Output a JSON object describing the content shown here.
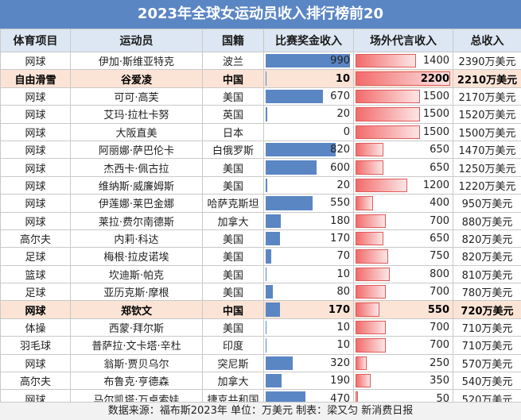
{
  "title": "2023年全球女运动员收入排行榜前20",
  "source": "数据来源：福布斯2023年 单位：万美元   制表：梁又匀 新消费日报",
  "colors": {
    "header_bg": "#5b86c4",
    "highlight_row": "#fbe4d6",
    "prize_bar": "#5b86c4",
    "endorse_bar": "#f26b6b"
  },
  "chart_data": {
    "type": "table",
    "title": "2023年全球女运动员收入排行榜前20",
    "columns": [
      "体育项目",
      "运动员",
      "国籍",
      "比赛奖金收入",
      "场外代言收入",
      "总收入"
    ],
    "rows": [
      {
        "sport": "网球",
        "name": "伊加·斯维亚特克",
        "country": "波兰",
        "prize": 990,
        "endorse": 1400,
        "total": "2390万美元",
        "hl": false
      },
      {
        "sport": "自由滑雪",
        "name": "谷爱凌",
        "country": "中国",
        "prize": 10,
        "endorse": 2200,
        "total": "2210万美元",
        "hl": true
      },
      {
        "sport": "网球",
        "name": "可可·高芙",
        "country": "美国",
        "prize": 670,
        "endorse": 1500,
        "total": "2170万美元",
        "hl": false
      },
      {
        "sport": "网球",
        "name": "艾玛·拉杜卡努",
        "country": "英国",
        "prize": 20,
        "endorse": 1500,
        "total": "1520万美元",
        "hl": false
      },
      {
        "sport": "网球",
        "name": "大阪直美",
        "country": "日本",
        "prize": 0,
        "endorse": 1500,
        "total": "1500万美元",
        "hl": false
      },
      {
        "sport": "网球",
        "name": "阿丽娜·萨巴伦卡",
        "country": "白俄罗斯",
        "prize": 820,
        "endorse": 650,
        "total": "1470万美元",
        "hl": false
      },
      {
        "sport": "网球",
        "name": "杰西卡·佩古拉",
        "country": "美国",
        "prize": 600,
        "endorse": 650,
        "total": "1250万美元",
        "hl": false
      },
      {
        "sport": "网球",
        "name": "维纳斯·威廉姆斯",
        "country": "美国",
        "prize": 20,
        "endorse": 1200,
        "total": "1220万美元",
        "hl": false
      },
      {
        "sport": "网球",
        "name": "伊莲娜·莱巴金娜",
        "country": "哈萨克斯坦",
        "prize": 550,
        "endorse": 400,
        "total": "950万美元",
        "hl": false
      },
      {
        "sport": "网球",
        "name": "莱拉·费尔南德斯",
        "country": "加拿大",
        "prize": 180,
        "endorse": 700,
        "total": "880万美元",
        "hl": false
      },
      {
        "sport": "高尔夫",
        "name": "内莉·科达",
        "country": "美国",
        "prize": 170,
        "endorse": 650,
        "total": "820万美元",
        "hl": false
      },
      {
        "sport": "足球",
        "name": "梅根·拉皮诺埃",
        "country": "美国",
        "prize": 70,
        "endorse": 750,
        "total": "820万美元",
        "hl": false
      },
      {
        "sport": "篮球",
        "name": "坎迪斯·帕克",
        "country": "美国",
        "prize": 10,
        "endorse": 800,
        "total": "810万美元",
        "hl": false
      },
      {
        "sport": "足球",
        "name": "亚历克斯·摩根",
        "country": "美国",
        "prize": 80,
        "endorse": 700,
        "total": "780万美元",
        "hl": false
      },
      {
        "sport": "网球",
        "name": "郑钦文",
        "country": "中国",
        "prize": 170,
        "endorse": 550,
        "total": "720万美元",
        "hl": true
      },
      {
        "sport": "体操",
        "name": "西蒙·拜尔斯",
        "country": "美国",
        "prize": 10,
        "endorse": 700,
        "total": "710万美元",
        "hl": false
      },
      {
        "sport": "羽毛球",
        "name": "普萨拉·文卡塔·辛杜",
        "country": "印度",
        "prize": 10,
        "endorse": 700,
        "total": "710万美元",
        "hl": false
      },
      {
        "sport": "网球",
        "name": "翁斯·贾贝乌尔",
        "country": "突尼斯",
        "prize": 320,
        "endorse": 250,
        "total": "570万美元",
        "hl": false
      },
      {
        "sport": "高尔夫",
        "name": "布鲁克·亨德森",
        "country": "加拿大",
        "prize": 190,
        "endorse": 350,
        "total": "540万美元",
        "hl": false
      },
      {
        "sport": "网球",
        "name": "马尔凯塔·万卓索娃",
        "country": "捷克共和国",
        "prize": 470,
        "endorse": 50,
        "total": "520万美元",
        "hl": false
      }
    ]
  }
}
